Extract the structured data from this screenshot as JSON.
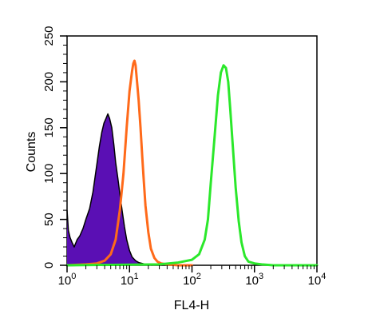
{
  "chart_data": {
    "type": "area",
    "xlabel": "FL4-H",
    "ylabel": "Counts",
    "x_scale": "log",
    "xlim": [
      1,
      10000
    ],
    "ylim": [
      0,
      250
    ],
    "x_ticks": [
      {
        "value": 1,
        "base": "10",
        "exp": "0"
      },
      {
        "value": 10,
        "base": "10",
        "exp": "1"
      },
      {
        "value": 100,
        "base": "10",
        "exp": "2"
      },
      {
        "value": 1000,
        "base": "10",
        "exp": "3"
      },
      {
        "value": 10000,
        "base": "10",
        "exp": "4"
      }
    ],
    "y_ticks": [
      0,
      50,
      100,
      150,
      200,
      250
    ],
    "grid": false,
    "legend": "none",
    "series": [
      {
        "style": "filled",
        "color": "#5a0fb4",
        "edge_color": "#000000",
        "x": [
          1.0,
          1.05,
          1.12,
          1.2,
          1.3,
          1.45,
          1.6,
          1.8,
          2.0,
          2.3,
          2.6,
          3.0,
          3.3,
          3.6,
          3.9,
          4.2,
          4.5,
          4.8,
          5.2,
          5.6,
          6.0,
          6.5,
          7.0,
          7.6,
          8.3,
          9.0,
          10.0,
          11.0,
          12.5,
          14.0,
          16.0,
          18.0,
          20.0,
          23.0
        ],
        "y": [
          60,
          38,
          30,
          25,
          20,
          28,
          32,
          40,
          50,
          62,
          80,
          110,
          130,
          145,
          155,
          160,
          165,
          160,
          150,
          132,
          112,
          95,
          78,
          60,
          42,
          28,
          16,
          9,
          5,
          3,
          2,
          1,
          1,
          0
        ]
      },
      {
        "style": "line",
        "color": "#ff6a1a",
        "x": [
          1.0,
          2.0,
          3.0,
          4.0,
          5.0,
          6.0,
          7.0,
          8.0,
          9.0,
          10.0,
          11.0,
          11.5,
          12.0,
          12.5,
          13.0,
          14.0,
          15.0,
          16.0,
          17.0,
          18.0,
          20.0,
          22.0,
          25.0,
          28.0,
          32.0,
          40.0,
          60.0,
          100.0
        ],
        "y": [
          0,
          1,
          2,
          5,
          12,
          28,
          60,
          100,
          150,
          190,
          212,
          220,
          223,
          218,
          205,
          180,
          150,
          118,
          90,
          65,
          36,
          18,
          8,
          4,
          2,
          1,
          0,
          0
        ]
      },
      {
        "style": "line",
        "color": "#2be82b",
        "x": [
          1.0,
          30.0,
          60.0,
          100.0,
          130.0,
          160.0,
          180.0,
          200.0,
          230.0,
          260.0,
          290.0,
          320.0,
          350.0,
          380.0,
          410.0,
          450.0,
          500.0,
          560.0,
          620.0,
          700.0,
          800.0,
          1000.0,
          1300.0,
          2000.0,
          10000.0
        ],
        "y": [
          0,
          1,
          3,
          6,
          12,
          28,
          50,
          90,
          140,
          185,
          210,
          218,
          215,
          200,
          170,
          130,
          85,
          48,
          25,
          10,
          4,
          2,
          1,
          0,
          0
        ]
      }
    ]
  }
}
